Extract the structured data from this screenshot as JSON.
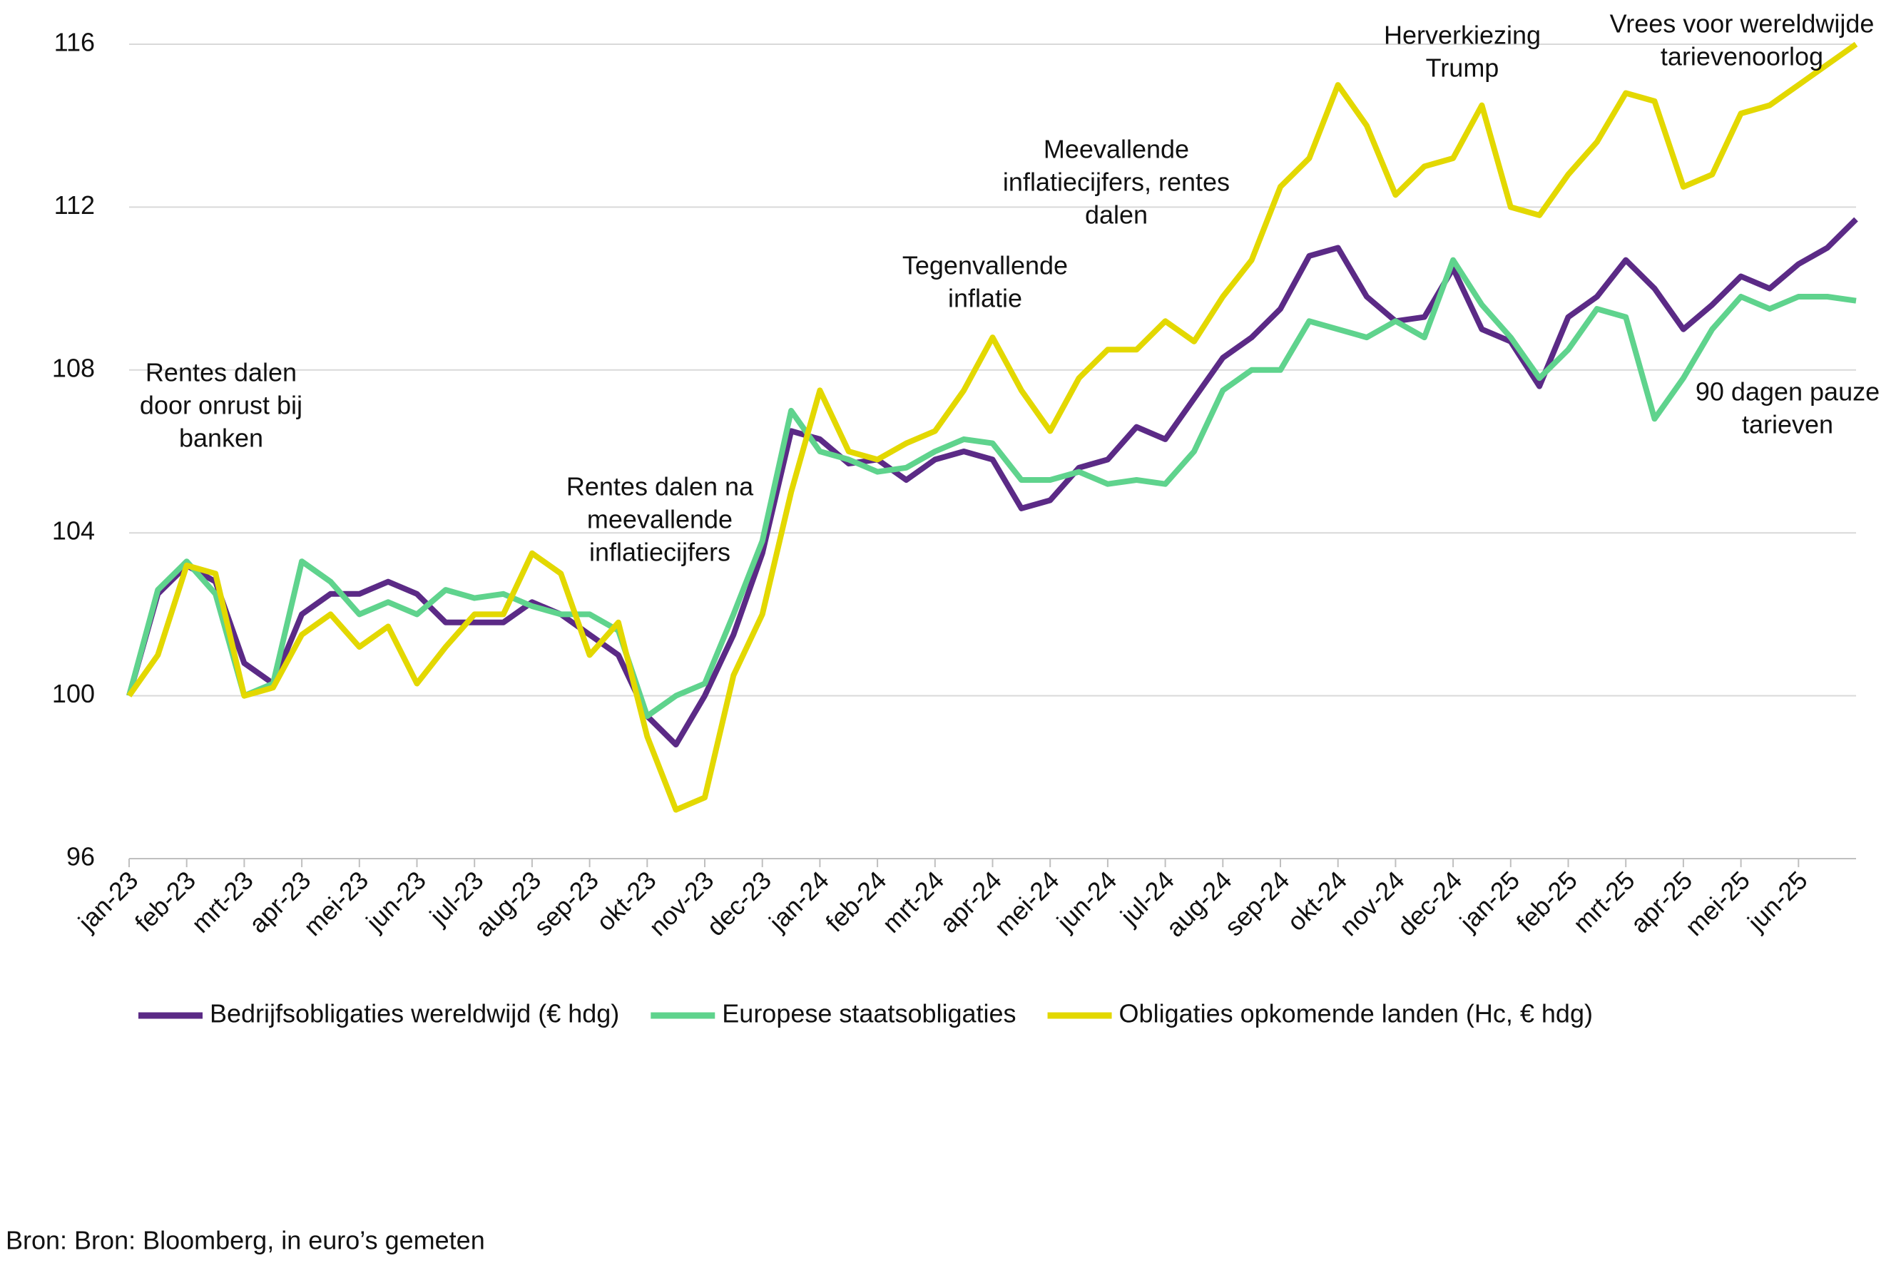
{
  "chart_data": {
    "type": "line",
    "categories": [
      "jan-23",
      null,
      "feb-23",
      null,
      "mrt-23",
      null,
      "apr-23",
      null,
      "mei-23",
      null,
      "jun-23",
      null,
      "jul-23",
      null,
      "aug-23",
      null,
      "sep-23",
      null,
      "okt-23",
      null,
      "nov-23",
      null,
      "dec-23",
      null,
      "jan-24",
      null,
      "feb-24",
      null,
      "mrt-24",
      null,
      "apr-24",
      null,
      "mei-24",
      null,
      "jun-24",
      null,
      "jul-24",
      null,
      "aug-24",
      null,
      "sep-24",
      null,
      "okt-24",
      null,
      "nov-24",
      null,
      "dec-24",
      null,
      "jan-25",
      null,
      "feb-25",
      null,
      "mrt-25",
      null,
      "apr-25",
      null,
      "mei-25",
      null,
      "jun-25",
      null,
      null
    ],
    "series": [
      {
        "name": "Bedrijfsobligaties wereldwijd (€ hdg)",
        "color": "#5b2a86",
        "values": [
          100,
          102.5,
          103.2,
          102.8,
          100.8,
          100.3,
          102.0,
          102.5,
          102.5,
          102.8,
          102.5,
          101.8,
          101.8,
          101.8,
          102.3,
          102.0,
          101.5,
          101.0,
          99.5,
          98.8,
          100.0,
          101.5,
          103.5,
          106.5,
          106.3,
          105.7,
          105.8,
          105.3,
          105.8,
          106.0,
          105.8,
          104.6,
          104.8,
          105.6,
          105.8,
          106.6,
          106.3,
          107.3,
          108.3,
          108.8,
          109.5,
          110.8,
          111.0,
          109.8,
          109.2,
          109.3,
          110.5,
          109.0,
          108.7,
          107.6,
          109.3,
          109.8,
          110.7,
          110.0,
          109.0,
          109.6,
          110.3,
          110.0,
          110.6,
          111.0,
          111.7
        ]
      },
      {
        "name": "Europese staatsobligaties",
        "color": "#5fd38d",
        "values": [
          100,
          102.6,
          103.3,
          102.5,
          100.0,
          100.3,
          103.3,
          102.8,
          102.0,
          102.3,
          102.0,
          102.6,
          102.4,
          102.5,
          102.2,
          102.0,
          102.0,
          101.6,
          99.5,
          100.0,
          100.3,
          102.0,
          103.8,
          107.0,
          106.0,
          105.8,
          105.5,
          105.6,
          106.0,
          106.3,
          106.2,
          105.3,
          105.3,
          105.5,
          105.2,
          105.3,
          105.2,
          106.0,
          107.5,
          108.0,
          108.0,
          109.2,
          109.0,
          108.8,
          109.2,
          108.8,
          110.7,
          109.6,
          108.8,
          107.8,
          108.5,
          109.5,
          109.3,
          106.8,
          107.8,
          109.0,
          109.8,
          109.5,
          109.8,
          109.8,
          109.7
        ]
      },
      {
        "name": "Obligaties opkomende landen (Hc, € hdg)",
        "color": "#e3d800",
        "values": [
          100,
          101.0,
          103.2,
          103.0,
          100.0,
          100.2,
          101.5,
          102.0,
          101.2,
          101.7,
          100.3,
          101.2,
          102.0,
          102.0,
          103.5,
          103.0,
          101.0,
          101.8,
          99.0,
          97.2,
          97.5,
          100.5,
          102.0,
          105.0,
          107.5,
          106.0,
          105.8,
          106.2,
          106.5,
          107.5,
          108.8,
          107.5,
          106.5,
          107.8,
          108.5,
          108.5,
          109.2,
          108.7,
          109.8,
          110.7,
          112.5,
          113.2,
          115.0,
          114.0,
          112.3,
          113.0,
          113.2,
          114.5,
          112.0,
          111.8,
          112.8,
          113.6,
          114.8,
          114.6,
          112.5,
          112.8,
          114.3,
          114.5,
          115.0,
          115.5,
          116.0
        ]
      }
    ],
    "ylim": [
      96,
      117
    ],
    "yticks": [
      96,
      100,
      104,
      108,
      112,
      116
    ],
    "grid": true,
    "annotations": [
      [
        "Rentes dalen",
        "door onrust bij",
        "banken"
      ],
      [
        "Rentes dalen na",
        "meevallende",
        "inflatiecijfers"
      ],
      [
        "Tegenvallende",
        "inflatie"
      ],
      [
        "Meevallende",
        "inflatiecijfers, rentes",
        "dalen"
      ],
      [
        "Herverkiezing",
        "Trump"
      ],
      [
        "Vrees voor wereldwijde",
        "tarievenoorlog"
      ],
      [
        "90 dagen pauze",
        "tarieven"
      ]
    ],
    "source": "Bron: Bron: Bloomberg, in euro’s gemeten"
  }
}
